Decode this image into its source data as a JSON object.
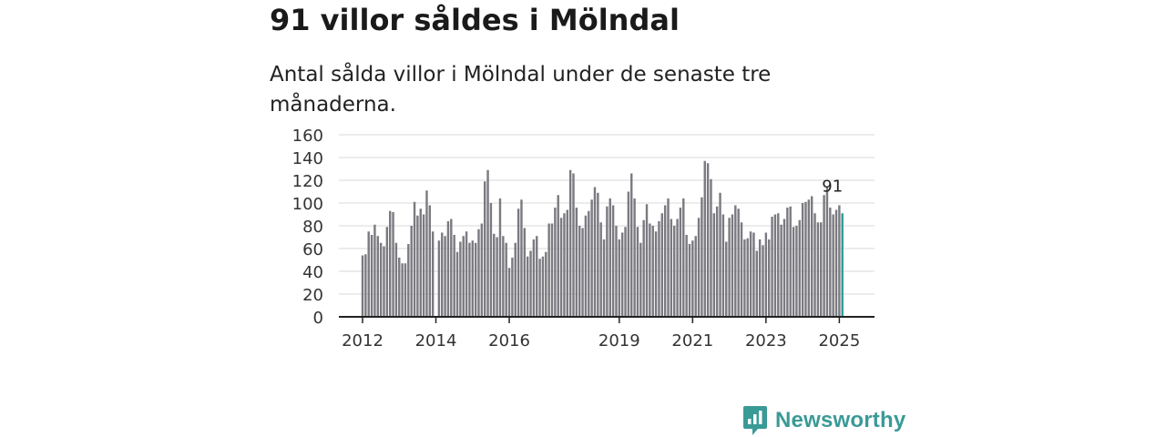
{
  "header": {
    "title": "91 villor såldes i Mölndal",
    "subtitle": "Antal sålda villor i Mölndal under de senaste tre månaderna."
  },
  "brand": {
    "name": "Newsworthy",
    "icon": "newsworthy-logo-icon",
    "color": "#3a9a96"
  },
  "colors": {
    "bar": "#7b7a80",
    "highlight": "#2a9d97",
    "grid": "#d9d9d9",
    "axis": "#222222"
  },
  "chart_data": {
    "type": "bar",
    "title": "91 villor såldes i Mölndal",
    "subtitle": "Antal sålda villor i Mölndal under de senaste tre månaderna.",
    "ylim": [
      0,
      160
    ],
    "yticks": [
      0,
      20,
      40,
      60,
      80,
      100,
      120,
      140,
      160
    ],
    "xticks": [
      "2012",
      "2014",
      "2016",
      "2019",
      "2021",
      "2023",
      "2025"
    ],
    "grid": true,
    "highlight_label": "91",
    "start": "2012-01",
    "end": "2025-04",
    "values": [
      54,
      55,
      75,
      72,
      81,
      71,
      65,
      62,
      79,
      93,
      92,
      65,
      52,
      47,
      47,
      64,
      80,
      101,
      89,
      95,
      90,
      111,
      98,
      75,
      0,
      67,
      74,
      71,
      84,
      86,
      72,
      57,
      66,
      71,
      75,
      65,
      67,
      65,
      77,
      82,
      119,
      129,
      100,
      73,
      70,
      104,
      71,
      65,
      43,
      52,
      65,
      95,
      103,
      78,
      53,
      58,
      68,
      71,
      51,
      53,
      57,
      82,
      82,
      96,
      107,
      87,
      91,
      94,
      129,
      126,
      96,
      80,
      78,
      89,
      93,
      103,
      114,
      109,
      83,
      68,
      97,
      104,
      98,
      80,
      68,
      74,
      79,
      110,
      126,
      104,
      79,
      65,
      85,
      99,
      82,
      80,
      75,
      84,
      91,
      98,
      104,
      86,
      80,
      86,
      96,
      104,
      72,
      64,
      67,
      71,
      87,
      105,
      137,
      135,
      121,
      91,
      97,
      109,
      90,
      66,
      87,
      90,
      98,
      95,
      83,
      68,
      69,
      75,
      74,
      58,
      68,
      63,
      74,
      68,
      88,
      90,
      91,
      81,
      86,
      96,
      97,
      79,
      80,
      85,
      100,
      101,
      103,
      106,
      91,
      83,
      83,
      107,
      114,
      96,
      90,
      94,
      98,
      91
    ]
  }
}
